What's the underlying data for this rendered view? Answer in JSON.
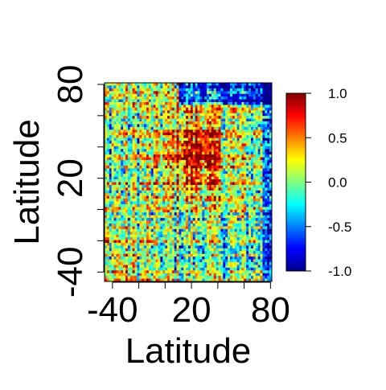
{
  "chart_data": {
    "type": "heatmap",
    "title": "",
    "xlabel": "Latitude",
    "ylabel": "Latitude",
    "xlim": [
      -46,
      81
    ],
    "ylim": [
      -46,
      81
    ],
    "x_ticks": [
      -40,
      -20,
      0,
      20,
      40,
      60,
      80
    ],
    "y_ticks": [
      -40,
      -20,
      0,
      20,
      40,
      60,
      80
    ],
    "x_tick_labels": [
      "-40",
      "",
      "",
      "20",
      "",
      "",
      "80"
    ],
    "y_tick_labels": [
      "-40",
      "",
      "",
      "20",
      "",
      "",
      "80"
    ],
    "colorbar": {
      "min": -1.0,
      "max": 1.0,
      "ticks": [
        1.0,
        0.5,
        0.0,
        -0.5,
        -1.0
      ],
      "tick_labels": [
        "1.0",
        "0.5",
        "0.0",
        "-0.5",
        "-1.0"
      ],
      "colors": [
        "#00008f",
        "#0000ff",
        "#0080ff",
        "#00ffff",
        "#80ff80",
        "#ffff00",
        "#ff8000",
        "#ff0000",
        "#800000"
      ]
    },
    "grid": false,
    "cells": {
      "rows": 72,
      "cols": 72,
      "description_of_pattern": "noisy correlation matrix; strongest positive block near latitudes 30-60 on both axes; negative values near the top-right (high latitude rows) and scattered"
    }
  }
}
